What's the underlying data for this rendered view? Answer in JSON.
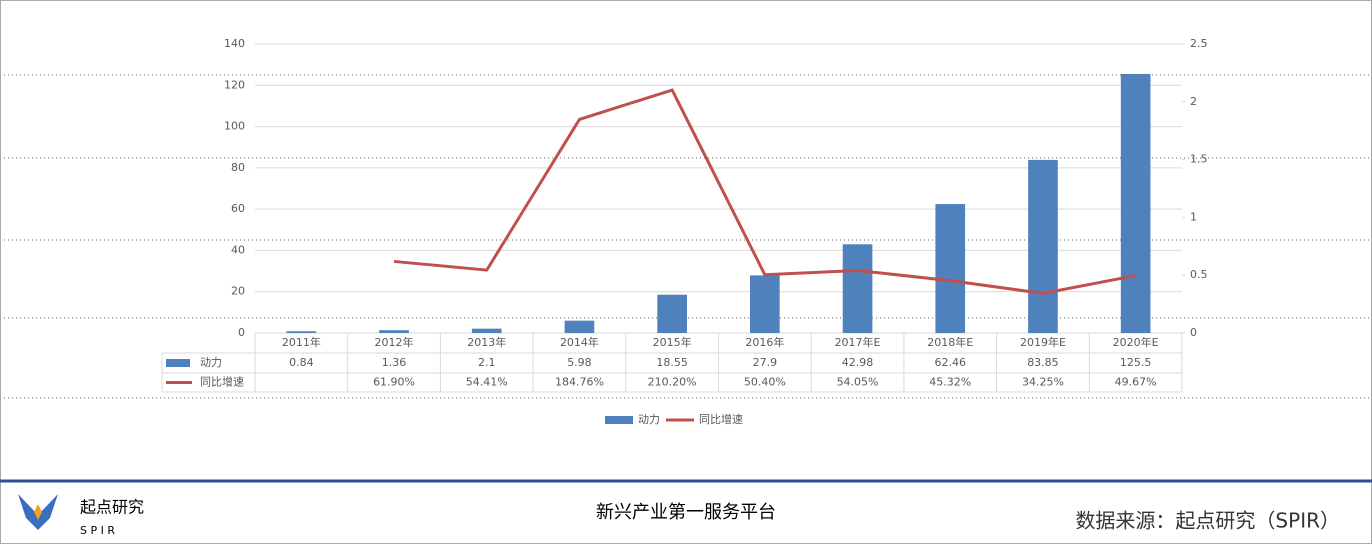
{
  "chart_data": {
    "type": "bar-line",
    "categories": [
      "2011年",
      "2012年",
      "2013年",
      "2014年",
      "2015年",
      "2016年",
      "2017年E",
      "2018年E",
      "2019年E",
      "2020年E"
    ],
    "series": [
      {
        "name": "动力",
        "type": "bar",
        "color": "#4f81bd",
        "values": [
          0.84,
          1.36,
          2.1,
          5.98,
          18.55,
          27.9,
          42.98,
          62.46,
          83.85,
          125.5
        ]
      },
      {
        "name": "同比增速",
        "type": "line",
        "axis": "y2",
        "color": "#c0504d",
        "values": [
          null,
          0.619,
          0.5441,
          1.8476,
          2.102,
          0.504,
          0.5405,
          0.4532,
          0.3425,
          0.4967
        ],
        "value_labels": [
          null,
          "61.90%",
          "54.41%",
          "184.76%",
          "210.20%",
          "50.40%",
          "54.05%",
          "45.32%",
          "34.25%",
          "49.67%"
        ]
      }
    ],
    "ylim": [
      0,
      140
    ],
    "yticks": [
      0,
      20,
      40,
      60,
      80,
      100,
      120,
      140
    ],
    "y2lim": [
      0,
      2.5
    ],
    "y2ticks": [
      0,
      0.5,
      1,
      1.5,
      2,
      2.5
    ],
    "grid": true,
    "legend": "bottom"
  },
  "footer": {
    "logo_text": "起点研究",
    "logo_sub": "S P I R",
    "slogan": "新兴产业第一服务平台",
    "source": "数据来源：起点研究（SPIR）"
  }
}
